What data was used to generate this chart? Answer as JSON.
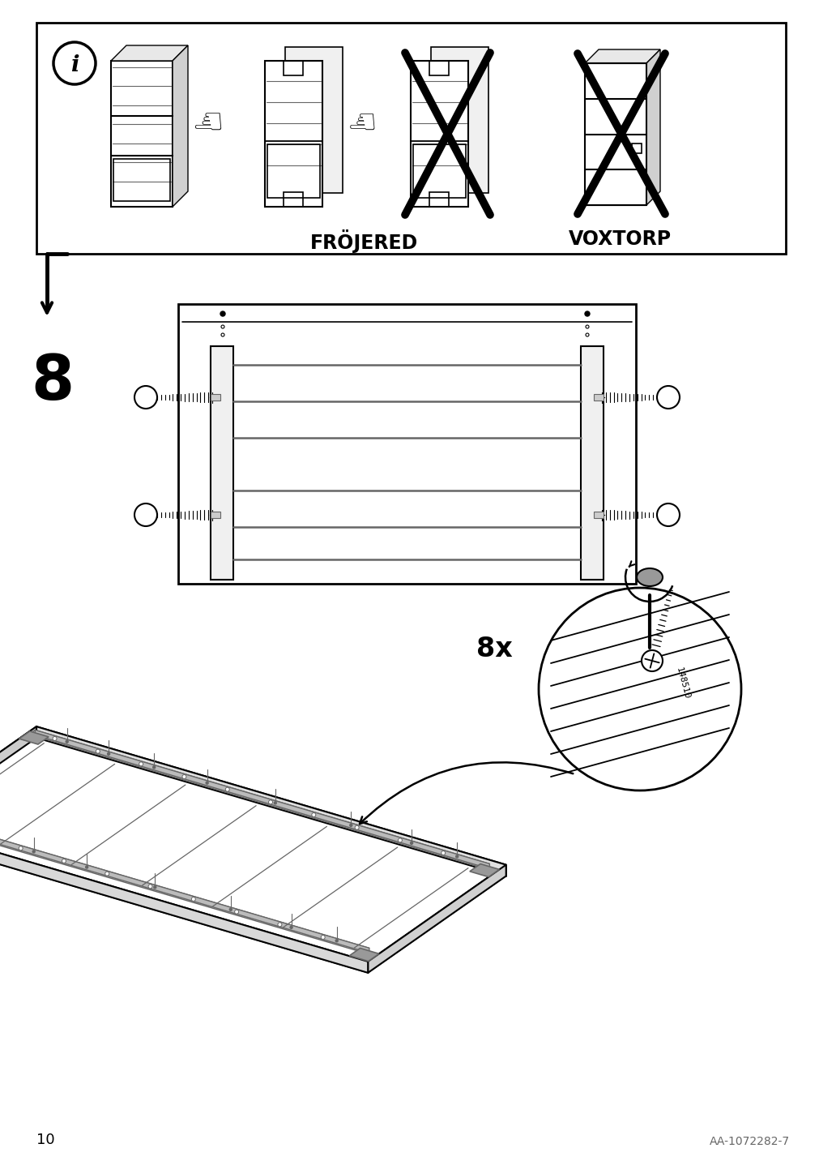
{
  "bg_color": "#ffffff",
  "line_color": "#000000",
  "gray_color": "#666666",
  "light_gray": "#bbbbbb",
  "page_number": "10",
  "doc_number": "AA-1072282-7",
  "step_number": "8",
  "froj_label": "FRÖJERED",
  "voxt_label": "VOXTORP",
  "screw_count_label": "8x",
  "screw_part": "148510"
}
